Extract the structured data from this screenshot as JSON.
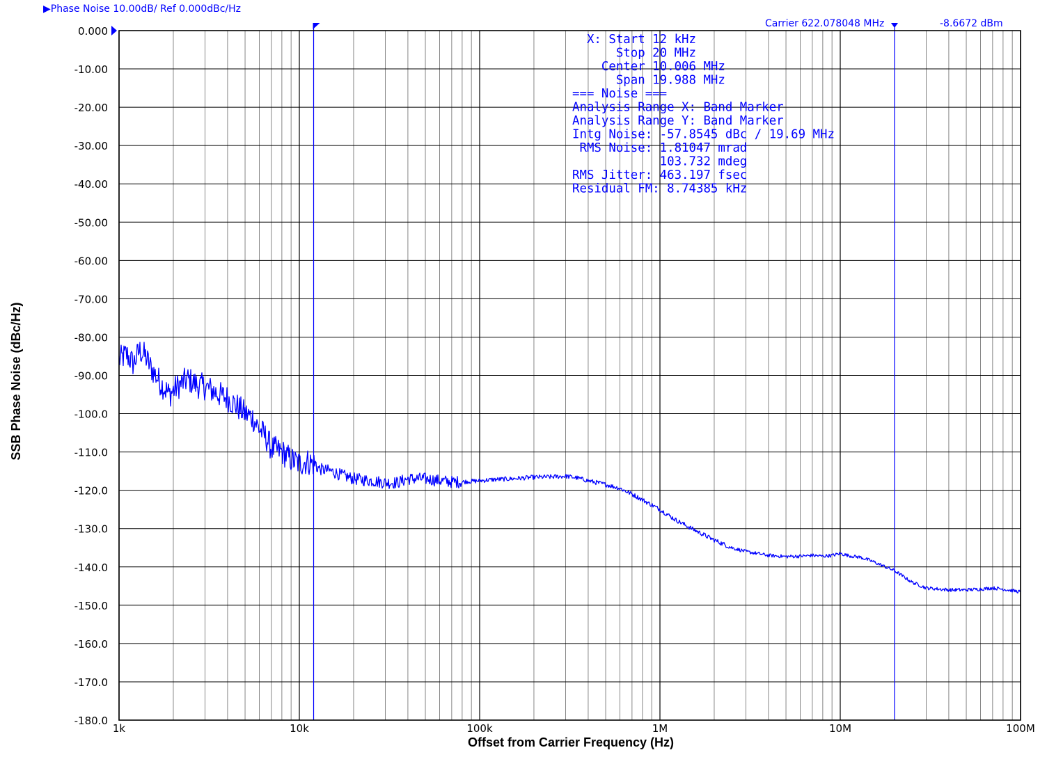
{
  "header": {
    "scale_label": "Phase Noise 10.00dB/ Ref 0.000dBc/Hz",
    "carrier_label": "Carrier 622.078048 MHz",
    "carrier_power": "-8.6672 dBm"
  },
  "annotation": [
    "  X: Start 12 kHz",
    "      Stop 20 MHz",
    "    Center 10.006 MHz",
    "      Span 19.988 MHz",
    "=== Noise ===",
    "Analysis Range X: Band Marker",
    "Analysis Range Y: Band Marker",
    "Intg Noise: -57.8545 dBc / 19.69 MHz",
    " RMS Noise: 1.81047 mrad",
    "            103.732 mdeg",
    "RMS Jitter: 463.197 fsec",
    "Residual FM: 8.74385 kHz"
  ],
  "chart_data": {
    "type": "line",
    "title": "",
    "xlabel": "Offset from Carrier Frequency (Hz)",
    "ylabel": "SSB Phase Noise   (dBc/Hz)",
    "x_scale": "log",
    "xlim": [
      1000,
      100000000
    ],
    "ylim": [
      -180,
      0
    ],
    "y_ticks": [
      0,
      -10,
      -20,
      -30,
      -40,
      -50,
      -60,
      -70,
      -80,
      -90,
      -100,
      -110,
      -120,
      -130,
      -140,
      -150,
      -160,
      -170,
      -180
    ],
    "y_tick_labels": [
      "0.000",
      "-10.00",
      "-20.00",
      "-30.00",
      "-40.00",
      "-50.00",
      "-60.00",
      "-70.00",
      "-80.00",
      "-90.00",
      "-100.0",
      "-110.0",
      "-120.0",
      "-130.0",
      "-140.0",
      "-150.0",
      "-160.0",
      "-170.0",
      "-180.0"
    ],
    "x_ticks": [
      1000,
      10000,
      100000,
      1000000,
      10000000,
      100000000
    ],
    "x_tick_labels": [
      "1k",
      "10k",
      "100k",
      "1M",
      "10M",
      "100M"
    ],
    "grid": true,
    "band_markers_hz": [
      12000,
      20000000
    ],
    "colors": {
      "trace": "#0000ff",
      "marker": "#0000ff",
      "grid": "#000000"
    },
    "series": [
      {
        "x": [
          1000,
          1100,
          1200,
          1300,
          1400,
          1500,
          1700,
          1900,
          2100,
          2400,
          2700,
          3000,
          3300,
          3600,
          4000,
          4500,
          5000,
          5500,
          6000,
          6500,
          7000,
          8000,
          9000,
          10000,
          11000,
          12000,
          13000,
          15000,
          17000,
          20000,
          25000,
          30000,
          35000,
          40000,
          50000,
          60000,
          70000,
          80000,
          100000,
          120000,
          150000,
          200000,
          250000,
          300000,
          350000,
          400000,
          500000,
          600000,
          700000,
          800000,
          1000000,
          1200000,
          1500000,
          2000000,
          2500000,
          3000000,
          4000000,
          5000000,
          6000000,
          7000000,
          8000000,
          9000000,
          10000000,
          11000000,
          12000000,
          13000000,
          15000000,
          20000000,
          25000000,
          30000000,
          40000000,
          50000000,
          60000000,
          70000000,
          80000000,
          90000000,
          100000000
        ],
        "values": [
          -86,
          -84.5,
          -87,
          -83.5,
          -85,
          -88,
          -92,
          -95,
          -93,
          -91,
          -92.5,
          -93,
          -94,
          -95,
          -96,
          -98,
          -100,
          -101,
          -104,
          -106,
          -109,
          -110,
          -112,
          -113,
          -112.5,
          -113,
          -114.5,
          -115,
          -116,
          -117,
          -117.5,
          -118,
          -118,
          -117,
          -117,
          -117.5,
          -117.8,
          -117.8,
          -117.5,
          -117.2,
          -117,
          -116.6,
          -116.5,
          -116.3,
          -116.8,
          -117.5,
          -118.5,
          -119.5,
          -121,
          -122.5,
          -125,
          -127.5,
          -130,
          -133,
          -135,
          -136,
          -137,
          -137.3,
          -137.2,
          -137,
          -137.2,
          -137,
          -136.5,
          -137,
          -137.3,
          -137.5,
          -138.5,
          -141,
          -144,
          -145.5,
          -146,
          -146,
          -145.8,
          -145.5,
          -145.8,
          -146.2,
          -146.5
        ]
      }
    ]
  }
}
